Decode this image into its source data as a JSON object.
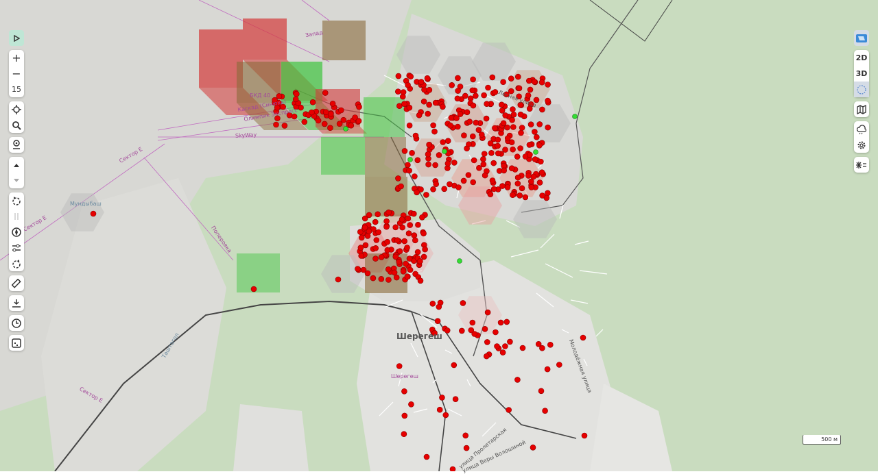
{
  "map": {
    "town_label": "Шерегеш",
    "town_small_label": "Шерегеш",
    "labels": [
      "Сектор Е",
      "Сектор Е",
      "Сектор Е",
      "SkyWay",
      "Мундыбаш",
      "Поперовка",
      "БКД 40",
      "Каскад (Синюха)",
      "Олимпик Экспресс",
      "Запад",
      "Таштагол",
      "улица Пролетарская",
      "улица Веры Волошиной",
      "Молодёжная улица",
      "Лесная улица"
    ],
    "scale_label": "500 м",
    "colors": {
      "point": "#e60000",
      "point_green": "#33dd33",
      "hex_red": "#e88080",
      "block_red": "#d43a3a",
      "block_brown": "#8a6a3a",
      "block_green": "#3ec43e"
    }
  },
  "left_toolbar": {
    "play_icon": "play-icon",
    "zoom_in": "+",
    "zoom_out": "−",
    "zoom_level": "15",
    "items": [
      "locate-icon",
      "search-icon",
      "place-pin-icon",
      "tilt-up-icon",
      "tilt-down-icon",
      "rotate-left-icon",
      "pause-icon",
      "compass-icon",
      "sliders-icon",
      "rotate-right-icon",
      "ruler-icon",
      "download-icon",
      "clock-icon",
      "legend-icon"
    ]
  },
  "right_toolbar": {
    "mode_2d": "2D",
    "mode_3d": "3D",
    "items": [
      "satellite-layer-icon",
      "globe-icon",
      "map-icon",
      "weather-icon",
      "settings-icon",
      "filter-icon"
    ]
  }
}
